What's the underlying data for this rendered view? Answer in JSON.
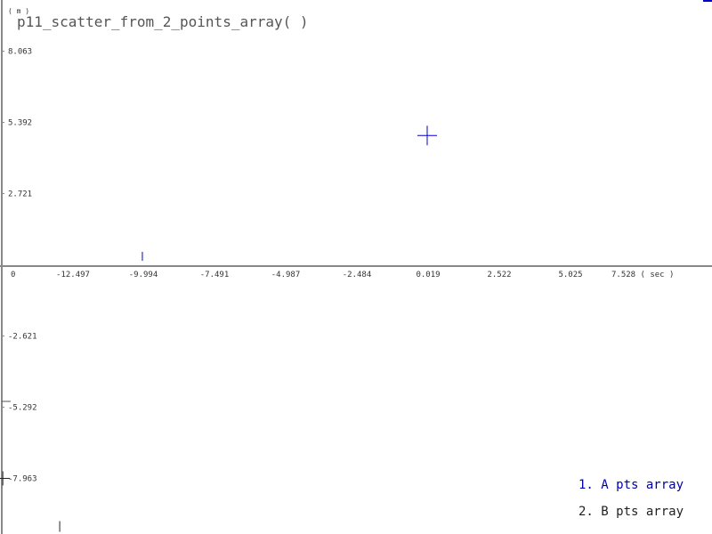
{
  "chart_data": {
    "type": "scatter",
    "title": "p11_scatter_from_2_points_array( )",
    "y_unit": "( m )",
    "x_unit": "( sec )",
    "x_ticks": [
      "0",
      "-12.497",
      "-9.994",
      "-7.491",
      "-4.987",
      "-2.484",
      "0.019",
      "2.522",
      "5.025",
      "7.528"
    ],
    "y_ticks": [
      "8.063",
      "5.392",
      "2.721",
      "-2.621",
      "-5.292",
      "-7.963"
    ],
    "grid": false,
    "legend_position": "bottom-right",
    "series": [
      {
        "name": "1. A pts array",
        "color": "#0000cc",
        "points": [
          [
            0.019,
            4.9
          ],
          [
            -9.994,
            0.2
          ]
        ]
      },
      {
        "name": "2. B pts array",
        "color": "#222222",
        "points": [
          [
            -14.9,
            -7.963
          ],
          [
            -12.9,
            -9.9
          ]
        ]
      }
    ]
  }
}
